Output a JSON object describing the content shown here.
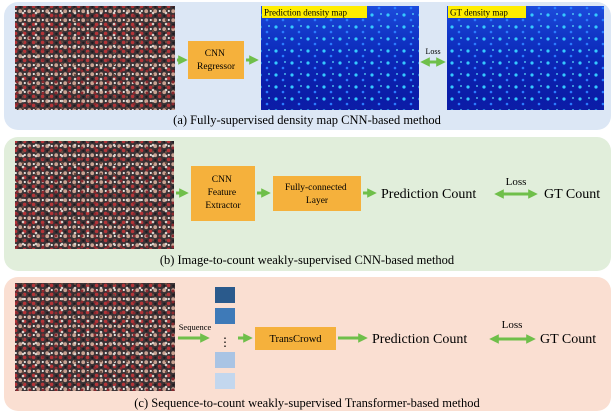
{
  "panels": {
    "a": {
      "caption": "(a) Fully-supervised density map CNN-based method",
      "regressor_label": [
        "CNN",
        "Regressor"
      ],
      "pred_map_label": "Prediction density map",
      "gt_map_label": "GT density map",
      "loss_label": "Loss",
      "bg_color": "#dce7f5"
    },
    "b": {
      "caption": "(b) Image-to-count weakly-supervised CNN-based method",
      "extractor_label": [
        "CNN",
        "Feature",
        "Extractor"
      ],
      "fc_label": [
        "Fully-connected",
        "Layer"
      ],
      "pred_count": "Prediction Count",
      "loss_label": "Loss",
      "gt_count": "GT Count",
      "bg_color": "#e1eedb"
    },
    "c": {
      "caption": "(c) Sequence-to-count weakly-supervised Transformer-based method",
      "sequence_label": "Sequence",
      "ellipsis": "⋮",
      "transcrowd_label": "TransCrowd",
      "pred_count": "Prediction Count",
      "loss_label": "Loss",
      "gt_count": "GT Count",
      "bg_color": "#fadfd2"
    }
  },
  "colors": {
    "arrow_green": "#6fbf4a",
    "box_orange": "#f5b13c",
    "box_text": "#ffffff",
    "map_label_bg": "#ffee00",
    "map_label_fg": "#e8000d",
    "density_bg": "#0c1ea8"
  }
}
